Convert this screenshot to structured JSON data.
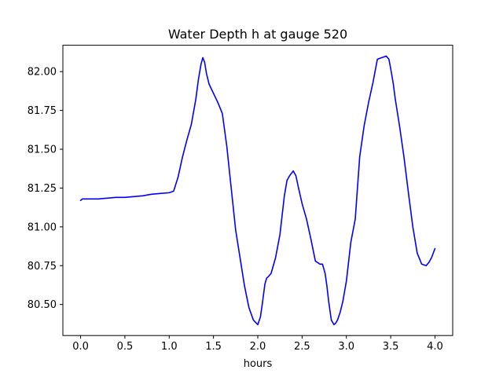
{
  "chart_data": {
    "type": "line",
    "title": "Water Depth h at gauge 520",
    "xlabel": "hours",
    "ylabel": "",
    "xlim": [
      -0.2,
      4.2
    ],
    "ylim": [
      80.3,
      82.17
    ],
    "xticks": [
      0.0,
      0.5,
      1.0,
      1.5,
      2.0,
      2.5,
      3.0,
      3.5,
      4.0
    ],
    "xtick_labels": [
      "0.0",
      "0.5",
      "1.0",
      "1.5",
      "2.0",
      "2.5",
      "3.0",
      "3.5",
      "4.0"
    ],
    "yticks": [
      80.5,
      80.75,
      81.0,
      81.25,
      81.5,
      81.75,
      82.0
    ],
    "ytick_labels": [
      "80.50",
      "80.75",
      "81.00",
      "81.25",
      "81.50",
      "81.75",
      "82.00"
    ],
    "grid": false,
    "series": [
      {
        "color": "#0000ff",
        "x": [
          0.0,
          0.02,
          0.1,
          0.2,
          0.3,
          0.4,
          0.5,
          0.6,
          0.7,
          0.8,
          0.9,
          1.0,
          1.05,
          1.1,
          1.15,
          1.2,
          1.25,
          1.3,
          1.33,
          1.36,
          1.38,
          1.4,
          1.42,
          1.45,
          1.5,
          1.55,
          1.6,
          1.65,
          1.7,
          1.75,
          1.8,
          1.85,
          1.9,
          1.95,
          2.0,
          2.03,
          2.05,
          2.08,
          2.1,
          2.12,
          2.15,
          2.2,
          2.25,
          2.3,
          2.33,
          2.36,
          2.4,
          2.43,
          2.46,
          2.48,
          2.5,
          2.55,
          2.6,
          2.65,
          2.7,
          2.73,
          2.76,
          2.78,
          2.8,
          2.83,
          2.86,
          2.88,
          2.9,
          2.93,
          2.96,
          3.0,
          3.05,
          3.1,
          3.15,
          3.2,
          3.25,
          3.3,
          3.35,
          3.4,
          3.45,
          3.48,
          3.5,
          3.53,
          3.55,
          3.6,
          3.65,
          3.7,
          3.75,
          3.8,
          3.85,
          3.9,
          3.93,
          3.96,
          4.0
        ],
        "y": [
          81.17,
          81.18,
          81.18,
          81.18,
          81.185,
          81.19,
          81.19,
          81.195,
          81.2,
          81.21,
          81.215,
          81.22,
          81.23,
          81.32,
          81.45,
          81.56,
          81.66,
          81.82,
          81.95,
          82.05,
          82.09,
          82.06,
          81.99,
          81.92,
          81.86,
          81.8,
          81.73,
          81.52,
          81.25,
          80.98,
          80.8,
          80.62,
          80.48,
          80.4,
          80.37,
          80.42,
          80.5,
          80.63,
          80.67,
          80.68,
          80.7,
          80.8,
          80.95,
          81.2,
          81.3,
          81.33,
          81.36,
          81.33,
          81.25,
          81.2,
          81.15,
          81.05,
          80.92,
          80.78,
          80.76,
          80.76,
          80.7,
          80.62,
          80.52,
          80.4,
          80.37,
          80.38,
          80.4,
          80.45,
          80.52,
          80.65,
          80.9,
          81.05,
          81.45,
          81.65,
          81.8,
          81.93,
          82.08,
          82.09,
          82.1,
          82.08,
          82.02,
          81.92,
          81.83,
          81.65,
          81.45,
          81.22,
          81.0,
          80.83,
          80.76,
          80.75,
          80.77,
          80.8,
          80.86
        ]
      }
    ]
  }
}
